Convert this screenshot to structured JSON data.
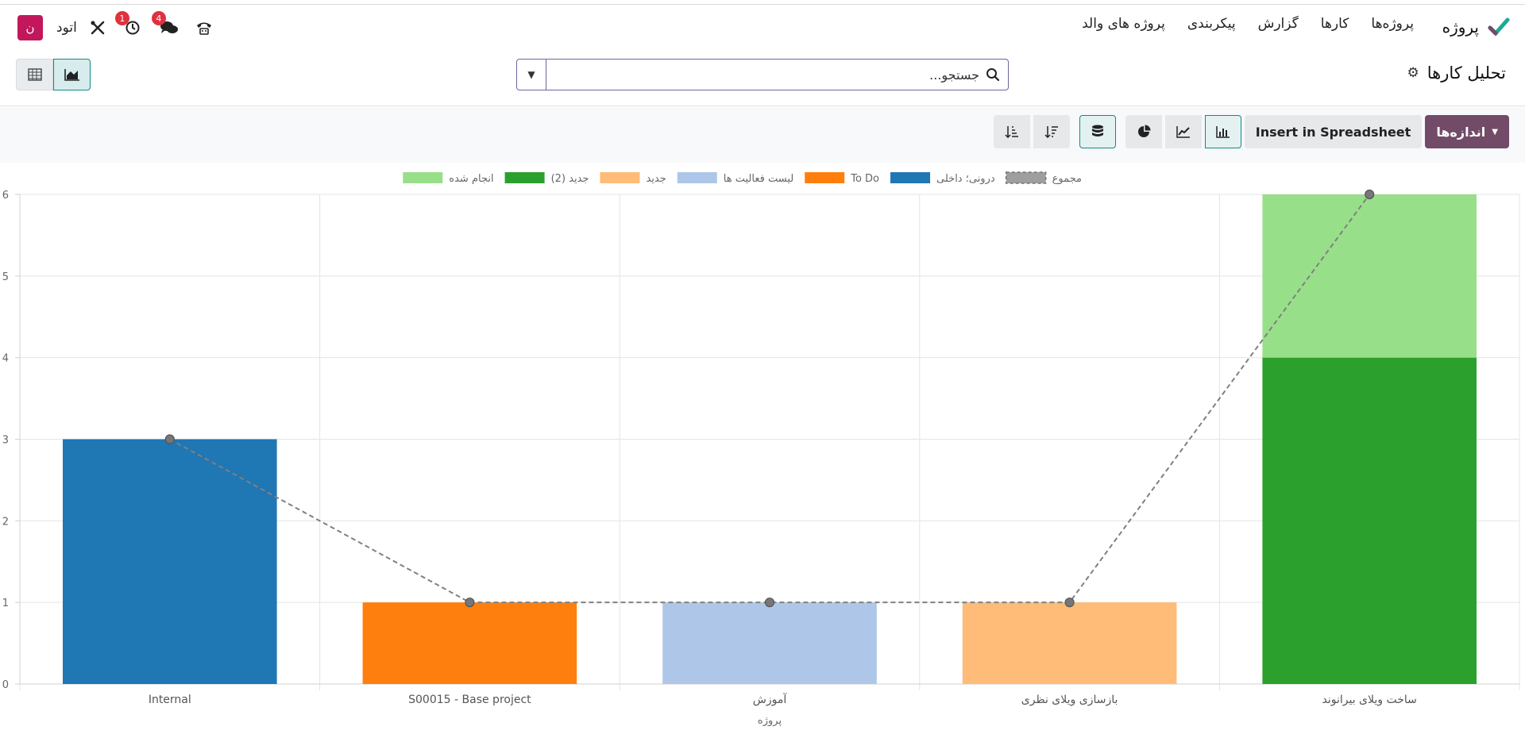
{
  "navbar": {
    "app_name": "پروژه",
    "menu": [
      "پروژه‌ها",
      "کارها",
      "گزارش",
      "پیکربندی",
      "پروژه های والد"
    ],
    "company": "اتود",
    "avatar_letter": "ن",
    "activity_badge": "1",
    "messages_badge": "4",
    "brand_color": "#714b67"
  },
  "control_panel": {
    "title": "تحلیل کارها",
    "search_placeholder": "جستجو..."
  },
  "toolbar": {
    "measures_label": "اندازه‌ها",
    "insert_label": "Insert in Spreadsheet"
  },
  "chart_data": {
    "type": "bar",
    "stacked": true,
    "categories": [
      "Internal",
      "S00015 - Base project",
      "آموزش",
      "بازسازی ویلای نظری",
      "ساخت ویلای بیرانوند"
    ],
    "xlabel": "پروژه",
    "ylabel": "",
    "ylim": [
      0,
      6
    ],
    "yticks": [
      0,
      1,
      2,
      3,
      4,
      5,
      6
    ],
    "grid": true,
    "legend_position": "top",
    "series": [
      {
        "name": "درونی؛ داخلی",
        "color": "#1f77b4",
        "values": [
          3,
          0,
          0,
          0,
          0
        ]
      },
      {
        "name": "To Do",
        "color": "#ff7f0e",
        "values": [
          0,
          1,
          0,
          0,
          0
        ]
      },
      {
        "name": "لیست فعالیت ها",
        "color": "#aec7e8",
        "values": [
          0,
          0,
          1,
          0,
          0
        ]
      },
      {
        "name": "جدید",
        "color": "#ffbb78",
        "values": [
          0,
          0,
          0,
          1,
          0
        ]
      },
      {
        "name": "جدید (2)",
        "color": "#2ca02c",
        "values": [
          0,
          0,
          0,
          0,
          4
        ]
      },
      {
        "name": "انجام شده",
        "color": "#98df8a",
        "values": [
          0,
          0,
          0,
          0,
          2
        ]
      }
    ],
    "total": {
      "name": "مجموع",
      "values": [
        3,
        1,
        1,
        1,
        6
      ],
      "color": "#808080"
    }
  }
}
